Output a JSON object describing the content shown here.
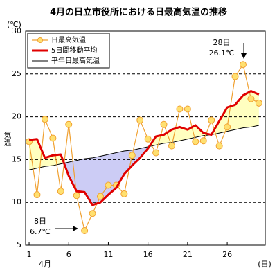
{
  "chart_data": {
    "type": "line",
    "title": "4月の日立市役所における日最高気温の推移",
    "y_unit": "(℃)",
    "ylabel": "気温",
    "x_unit": "(日)",
    "month_label": "4月",
    "x": [
      1,
      2,
      3,
      4,
      5,
      6,
      7,
      8,
      9,
      10,
      11,
      12,
      13,
      14,
      15,
      16,
      17,
      18,
      19,
      20,
      21,
      22,
      23,
      24,
      25,
      26,
      27,
      28,
      29,
      30
    ],
    "xlim": [
      0.56,
      30.8
    ],
    "xticks": [
      1,
      6,
      11,
      16,
      21,
      26
    ],
    "ylim": [
      5,
      30
    ],
    "yticks": [
      5,
      10,
      15,
      20,
      25,
      30
    ],
    "grid": true,
    "series": [
      {
        "name": "日最高気温",
        "color": "#f0a030",
        "marker": true,
        "values": [
          17.1,
          10.9,
          19.7,
          17.5,
          11.3,
          19.1,
          10.8,
          6.7,
          8.7,
          10.7,
          12.0,
          12.0,
          11.0,
          15.5,
          19.6,
          17.4,
          15.8,
          19.1,
          16.6,
          20.9,
          20.9,
          17.1,
          17.2,
          19.6,
          16.6,
          18.8,
          24.7,
          26.1,
          22.1,
          21.6
        ]
      },
      {
        "name": "5日間移動平均",
        "color": "#e00000",
        "values": [
          17.3,
          17.4,
          15.2,
          15.5,
          15.6,
          13.1,
          11.3,
          11.2,
          9.7,
          10.0,
          10.9,
          11.7,
          13.3,
          14.3,
          15.2,
          16.3,
          17.7,
          17.9,
          18.5,
          18.8,
          18.5,
          19.0,
          18.1,
          17.9,
          19.5,
          21.1,
          21.4,
          22.5,
          23.0,
          22.6
        ]
      },
      {
        "name": "平年日最高気温",
        "color": "#000000",
        "values": [
          13.8,
          14.0,
          14.2,
          14.3,
          14.5,
          14.7,
          14.9,
          15.1,
          15.2,
          15.4,
          15.6,
          15.8,
          16.0,
          16.1,
          16.3,
          16.5,
          16.7,
          16.9,
          17.0,
          17.2,
          17.4,
          17.6,
          17.8,
          17.9,
          18.1,
          18.3,
          18.5,
          18.7,
          18.8,
          19.0
        ]
      }
    ],
    "fill_above": "#ffffc0",
    "fill_below": "#ccccf5",
    "annotations": [
      {
        "lines": [
          "28日",
          "26.1℃"
        ]
      },
      {
        "lines": [
          "8日",
          "6.7℃"
        ]
      }
    ]
  }
}
